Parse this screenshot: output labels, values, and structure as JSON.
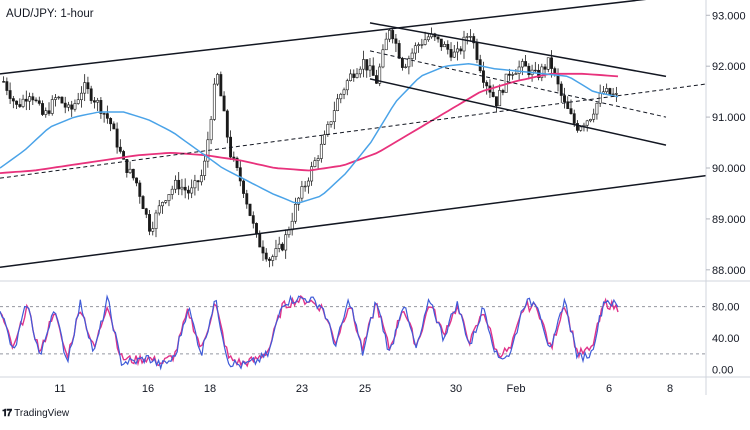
{
  "chart_data": {
    "type": "candlestick",
    "title": "AUD/JPY: 1-hour",
    "watermark": "TradingView",
    "x_ticks": [
      "11",
      "16",
      "18",
      "23",
      "25",
      "30",
      "Feb",
      "6",
      "8"
    ],
    "price_panel": {
      "y_ticks": [
        "93.000",
        "92.000",
        "91.000",
        "90.000",
        "89.000",
        "88.000"
      ],
      "ylim": [
        87.8,
        93.3
      ],
      "close_path": [
        91.7,
        91.2,
        91.5,
        91.0,
        91.4,
        91.1,
        91.6,
        91.3,
        90.9,
        90.1,
        89.7,
        88.8,
        89.4,
        89.7,
        89.5,
        89.9,
        91.9,
        90.3,
        89.6,
        88.6,
        88.2,
        88.5,
        89.3,
        89.9,
        90.5,
        91.3,
        91.8,
        92.1,
        91.7,
        92.8,
        92.0,
        92.4,
        92.6,
        92.4,
        92.2,
        92.7,
        91.8,
        91.3,
        91.9,
        92.0,
        91.8,
        92.1,
        91.3,
        90.8,
        91.0,
        91.5,
        91.4
      ],
      "ma_blue": [
        90.0,
        90.35,
        90.8,
        91.0,
        91.1,
        91.1,
        90.95,
        90.7,
        90.35,
        90.0,
        89.75,
        89.5,
        89.3,
        89.45,
        89.9,
        90.5,
        91.3,
        91.8,
        92.0,
        92.05,
        91.95,
        91.9,
        91.85,
        91.8,
        91.5,
        91.4
      ],
      "ma_pink": [
        89.9,
        89.95,
        90.05,
        90.15,
        90.25,
        90.3,
        90.25,
        90.15,
        90.0,
        89.95,
        90.05,
        90.3,
        90.7,
        91.1,
        91.5,
        91.7,
        91.85,
        91.85,
        91.8
      ],
      "channel_lines": [
        {
          "style": "solid",
          "from": {
            "x": "Jan 8",
            "y": 91.85
          },
          "to": {
            "x": "Feb 10",
            "y": 93.45
          }
        },
        {
          "style": "solid",
          "from": {
            "x": "Jan 8",
            "y": 88.05
          },
          "to": {
            "x": "Feb 10",
            "y": 89.85
          }
        },
        {
          "style": "dashed",
          "from": {
            "x": "Jan 8",
            "y": 89.8
          },
          "to": {
            "x": "Feb 10",
            "y": 91.65
          }
        },
        {
          "style": "solid",
          "from": {
            "x": "Jan 25",
            "y": 92.85
          },
          "to": {
            "x": "Feb 8",
            "y": 91.8
          }
        },
        {
          "style": "solid",
          "from": {
            "x": "Jan 25",
            "y": 91.75
          },
          "to": {
            "x": "Feb 8",
            "y": 90.45
          }
        },
        {
          "style": "dashed",
          "from": {
            "x": "Jan 25",
            "y": 92.3
          },
          "to": {
            "x": "Feb 8",
            "y": 91.0
          }
        }
      ]
    },
    "oscillator_panel": {
      "y_ticks": [
        "80.00",
        "40.00",
        "0.00"
      ],
      "ylim": [
        -8,
        110
      ],
      "levels": [
        80,
        20
      ],
      "k_path": [
        80,
        20,
        85,
        15,
        80,
        10,
        85,
        20,
        90,
        10,
        10,
        15,
        5,
        15,
        80,
        20,
        90,
        10,
        5,
        10,
        20,
        85,
        90,
        90,
        80,
        30,
        90,
        20,
        88,
        20,
        85,
        25,
        90,
        40,
        85,
        30,
        80,
        15,
        20,
        85,
        85,
        20,
        90,
        15,
        20,
        90,
        80
      ],
      "d_path": [
        75,
        25,
        80,
        20,
        75,
        15,
        80,
        25,
        85,
        15,
        12,
        15,
        8,
        18,
        75,
        25,
        85,
        15,
        8,
        12,
        25,
        80,
        88,
        88,
        78,
        35,
        85,
        25,
        85,
        25,
        80,
        30,
        85,
        45,
        80,
        35,
        75,
        20,
        25,
        80,
        80,
        25,
        85,
        20,
        25,
        85,
        78
      ]
    },
    "colors": {
      "ma_blue": "#4aa3e8",
      "ma_pink": "#e8327c",
      "k_line": "#3f5bd8",
      "d_line": "#e0338a",
      "candle": "#1a1a1a",
      "channel": "#131722"
    }
  }
}
